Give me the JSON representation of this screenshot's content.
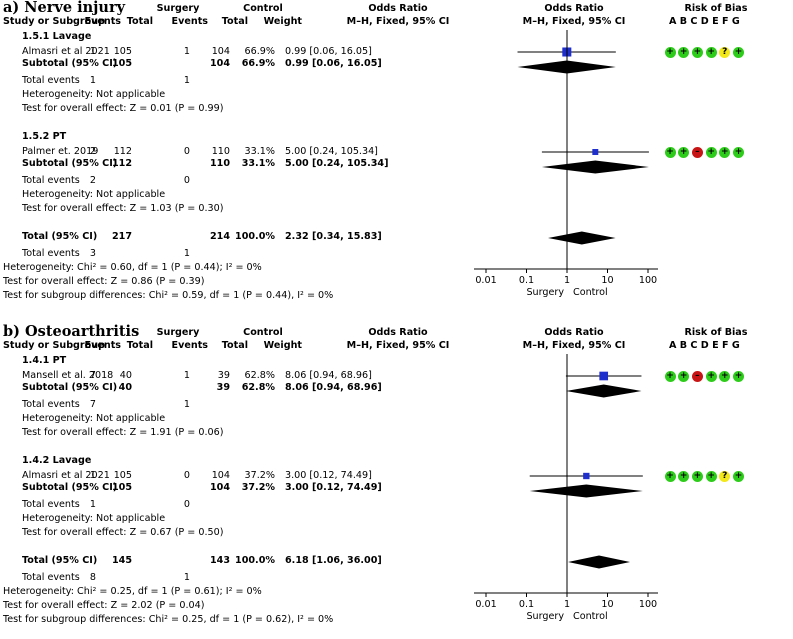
{
  "colors": {
    "marker": "#1f2fcc",
    "diamond": "#000000",
    "low_risk": "#2ecc1a",
    "unclear_risk": "#f2e81a",
    "high_risk": "#c81414"
  },
  "headers": {
    "study": "Study or Subgroup",
    "surgery": "Surgery",
    "control": "Control",
    "events": "Events",
    "total": "Total",
    "weight": "Weight",
    "or_col": "Odds Ratio",
    "or_method": "M–H, Fixed, 95% CI",
    "rob": "Risk of Bias",
    "rob_letters": "A B C D E F G",
    "favours_left": "Surgery",
    "favours_right": "Control"
  },
  "chart_data": [
    {
      "type": "forest",
      "title": "a) Nerve injury",
      "axis": {
        "scale": "log",
        "ticks": [
          "0.01",
          "0.1",
          "1",
          "10",
          "100"
        ],
        "xlim": [
          0.01,
          100
        ]
      },
      "subgroups": [
        {
          "name": "1.5.1 Lavage",
          "studies": [
            {
              "study": "Almasri et al 2021",
              "s_events": "1",
              "s_total": "105",
              "c_events": "1",
              "c_total": "104",
              "weight": "66.9%",
              "ci_text": "0.99 [0.06, 16.05]",
              "or": 0.99,
              "lo": 0.06,
              "hi": 16.05,
              "rob": [
                "low",
                "low",
                "low",
                "low",
                "unclear",
                "low"
              ]
            }
          ],
          "subtotal": {
            "label": "Subtotal (95% CI)",
            "s_total": "105",
            "c_total": "104",
            "weight": "66.9%",
            "ci_text": "0.99 [0.06, 16.05]",
            "or": 0.99,
            "lo": 0.06,
            "hi": 16.05
          },
          "total_events": {
            "label": "Total events",
            "s": "1",
            "c": "1"
          },
          "heterogeneity": "Heterogeneity: Not applicable",
          "overall": "Test for overall effect: Z = 0.01 (P = 0.99)"
        },
        {
          "name": "1.5.2 PT",
          "studies": [
            {
              "study": "Palmer et. 2019",
              "s_events": "2",
              "s_total": "112",
              "c_events": "0",
              "c_total": "110",
              "weight": "33.1%",
              "ci_text": "5.00 [0.24, 105.34]",
              "or": 5.0,
              "lo": 0.24,
              "hi": 105.34,
              "rob": [
                "low",
                "low",
                "high",
                "low",
                "low",
                "low"
              ]
            }
          ],
          "subtotal": {
            "label": "Subtotal (95% CI)",
            "s_total": "112",
            "c_total": "110",
            "weight": "33.1%",
            "ci_text": "5.00 [0.24, 105.34]",
            "or": 5.0,
            "lo": 0.24,
            "hi": 105.34
          },
          "total_events": {
            "label": "Total events",
            "s": "2",
            "c": "0"
          },
          "heterogeneity": "Heterogeneity: Not applicable",
          "overall": "Test for overall effect: Z = 1.03 (P = 0.30)"
        }
      ],
      "total": {
        "label": "Total (95% CI)",
        "s_total": "217",
        "c_total": "214",
        "weight": "100.0%",
        "ci_text": "2.32 [0.34, 15.83]",
        "or": 2.32,
        "lo": 0.34,
        "hi": 15.83
      },
      "total_events": {
        "label": "Total events",
        "s": "3",
        "c": "1"
      },
      "heterogeneity": "Heterogeneity: Chi² = 0.60, df = 1 (P = 0.44); I² = 0%",
      "overall": "Test for overall effect: Z = 0.86 (P = 0.39)",
      "subgroup_diff": "Test for subgroup differences: Chi² = 0.59, df = 1 (P = 0.44), I² = 0%"
    },
    {
      "type": "forest",
      "title": "b) Osteoarthritis",
      "axis": {
        "scale": "log",
        "ticks": [
          "0.01",
          "0.1",
          "1",
          "10",
          "100"
        ],
        "xlim": [
          0.01,
          100
        ]
      },
      "subgroups": [
        {
          "name": "1.4.1 PT",
          "studies": [
            {
              "study": "Mansell et al. 2018",
              "s_events": "7",
              "s_total": "40",
              "c_events": "1",
              "c_total": "39",
              "weight": "62.8%",
              "ci_text": "8.06 [0.94, 68.96]",
              "or": 8.06,
              "lo": 0.94,
              "hi": 68.96,
              "rob": [
                "low",
                "low",
                "high",
                "low",
                "low",
                "low"
              ]
            }
          ],
          "subtotal": {
            "label": "Subtotal (95% CI)",
            "s_total": "40",
            "c_total": "39",
            "weight": "62.8%",
            "ci_text": "8.06 [0.94, 68.96]",
            "or": 8.06,
            "lo": 0.94,
            "hi": 68.96
          },
          "total_events": {
            "label": "Total events",
            "s": "7",
            "c": "1"
          },
          "heterogeneity": "Heterogeneity: Not applicable",
          "overall": "Test for overall effect: Z = 1.91 (P = 0.06)"
        },
        {
          "name": "1.4.2 Lavage",
          "studies": [
            {
              "study": "Almasri et al 2021",
              "s_events": "1",
              "s_total": "105",
              "c_events": "0",
              "c_total": "104",
              "weight": "37.2%",
              "ci_text": "3.00 [0.12, 74.49]",
              "or": 3.0,
              "lo": 0.12,
              "hi": 74.49,
              "rob": [
                "low",
                "low",
                "low",
                "low",
                "unclear",
                "low"
              ]
            }
          ],
          "subtotal": {
            "label": "Subtotal (95% CI)",
            "s_total": "105",
            "c_total": "104",
            "weight": "37.2%",
            "ci_text": "3.00 [0.12, 74.49]",
            "or": 3.0,
            "lo": 0.12,
            "hi": 74.49
          },
          "total_events": {
            "label": "Total events",
            "s": "1",
            "c": "0"
          },
          "heterogeneity": "Heterogeneity: Not applicable",
          "overall": "Test for overall effect: Z = 0.67 (P = 0.50)"
        }
      ],
      "total": {
        "label": "Total (95% CI)",
        "s_total": "145",
        "c_total": "143",
        "weight": "100.0%",
        "ci_text": "6.18 [1.06, 36.00]",
        "or": 6.18,
        "lo": 1.06,
        "hi": 36.0
      },
      "total_events": {
        "label": "Total events",
        "s": "8",
        "c": "1"
      },
      "heterogeneity": "Heterogeneity: Chi² = 0.25, df = 1 (P = 0.61); I² = 0%",
      "overall": "Test for overall effect: Z = 2.02 (P = 0.04)",
      "subgroup_diff": "Test for subgroup differences: Chi² = 0.25, df = 1 (P = 0.62), I² = 0%"
    }
  ]
}
